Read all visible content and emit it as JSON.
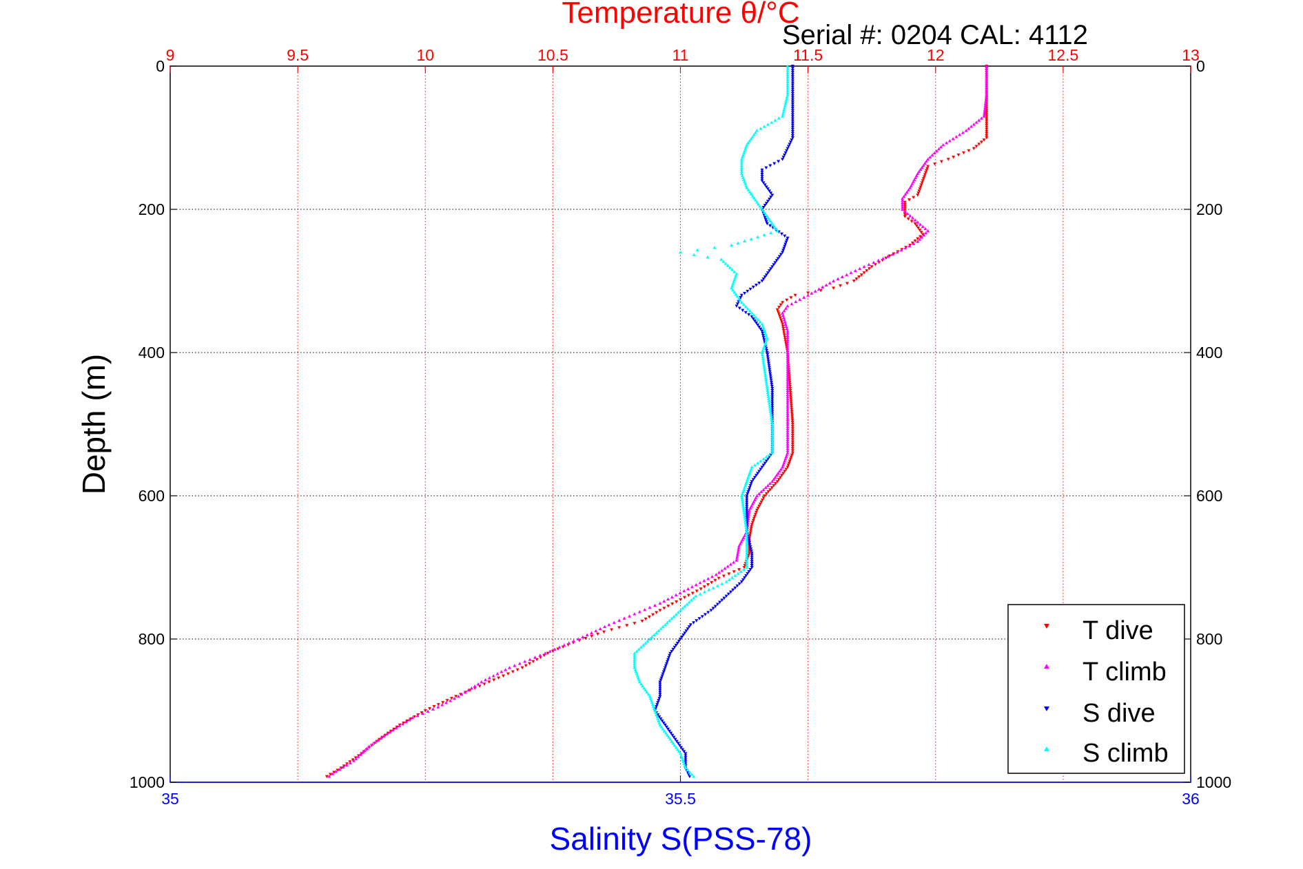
{
  "chart_data": {
    "type": "scatter",
    "title": "Temperature θ/°C",
    "annotation": "Serial #: 0204  CAL: 4112",
    "ylabel": "Depth (m)",
    "xlabel": "Salinity S(PSS-78)",
    "y_axis": {
      "min": 0,
      "max": 1000,
      "reversed": true,
      "ticks": [
        "0",
        "200",
        "400",
        "600",
        "800",
        "1000"
      ],
      "tick_values": [
        0,
        200,
        400,
        600,
        800,
        1000
      ]
    },
    "x_axis_top": {
      "label": "Temperature θ/°C",
      "min": 9,
      "max": 13,
      "color": "#ff0000",
      "ticks": [
        "9",
        "9.5",
        "10",
        "10.5",
        "11",
        "11.5",
        "12",
        "12.5",
        "13"
      ],
      "tick_values": [
        9,
        9.5,
        10,
        10.5,
        11,
        11.5,
        12,
        12.5,
        13
      ]
    },
    "x_axis_bottom": {
      "label": "Salinity S(PSS-78)",
      "min": 35,
      "max": 36,
      "color": "#0000ff",
      "ticks": [
        "35",
        "35.5",
        "36"
      ],
      "tick_values": [
        35,
        35.5,
        36
      ]
    },
    "grid": true,
    "legend_position": "bottom-right",
    "series": [
      {
        "name": "T dive",
        "axis": "temperature",
        "color": "#ff0000",
        "marker": "down-triangle",
        "points": [
          [
            0,
            12.2
          ],
          [
            50,
            12.2
          ],
          [
            100,
            12.2
          ],
          [
            115,
            12.15
          ],
          [
            130,
            12.05
          ],
          [
            140,
            11.97
          ],
          [
            160,
            11.95
          ],
          [
            180,
            11.93
          ],
          [
            190,
            11.88
          ],
          [
            210,
            11.88
          ],
          [
            220,
            11.92
          ],
          [
            235,
            11.95
          ],
          [
            250,
            11.9
          ],
          [
            265,
            11.82
          ],
          [
            280,
            11.75
          ],
          [
            300,
            11.68
          ],
          [
            310,
            11.6
          ],
          [
            320,
            11.45
          ],
          [
            330,
            11.4
          ],
          [
            340,
            11.38
          ],
          [
            360,
            11.4
          ],
          [
            400,
            11.42
          ],
          [
            450,
            11.43
          ],
          [
            500,
            11.44
          ],
          [
            540,
            11.44
          ],
          [
            560,
            11.42
          ],
          [
            580,
            11.38
          ],
          [
            600,
            11.33
          ],
          [
            620,
            11.3
          ],
          [
            640,
            11.28
          ],
          [
            660,
            11.27
          ],
          [
            680,
            11.27
          ],
          [
            700,
            11.25
          ],
          [
            715,
            11.15
          ],
          [
            730,
            11.08
          ],
          [
            745,
            11.0
          ],
          [
            760,
            10.92
          ],
          [
            775,
            10.85
          ],
          [
            790,
            10.7
          ],
          [
            805,
            10.58
          ],
          [
            820,
            10.48
          ],
          [
            840,
            10.38
          ],
          [
            860,
            10.25
          ],
          [
            880,
            10.12
          ],
          [
            900,
            10.0
          ],
          [
            920,
            9.9
          ],
          [
            940,
            9.82
          ],
          [
            960,
            9.75
          ],
          [
            980,
            9.67
          ],
          [
            995,
            9.6
          ]
        ]
      },
      {
        "name": "T climb",
        "axis": "temperature",
        "color": "#ff00ff",
        "marker": "up-triangle",
        "points": [
          [
            0,
            12.2
          ],
          [
            40,
            12.2
          ],
          [
            70,
            12.19
          ],
          [
            90,
            12.12
          ],
          [
            110,
            12.03
          ],
          [
            130,
            11.97
          ],
          [
            150,
            11.93
          ],
          [
            170,
            11.9
          ],
          [
            185,
            11.87
          ],
          [
            200,
            11.87
          ],
          [
            215,
            11.92
          ],
          [
            230,
            11.97
          ],
          [
            245,
            11.93
          ],
          [
            260,
            11.85
          ],
          [
            280,
            11.72
          ],
          [
            300,
            11.6
          ],
          [
            320,
            11.5
          ],
          [
            335,
            11.42
          ],
          [
            345,
            11.4
          ],
          [
            370,
            11.42
          ],
          [
            400,
            11.42
          ],
          [
            450,
            11.42
          ],
          [
            500,
            11.42
          ],
          [
            540,
            11.42
          ],
          [
            560,
            11.4
          ],
          [
            580,
            11.36
          ],
          [
            600,
            11.3
          ],
          [
            620,
            11.27
          ],
          [
            650,
            11.26
          ],
          [
            670,
            11.23
          ],
          [
            690,
            11.22
          ],
          [
            710,
            11.14
          ],
          [
            730,
            11.03
          ],
          [
            750,
            10.92
          ],
          [
            765,
            10.82
          ],
          [
            780,
            10.72
          ],
          [
            800,
            10.6
          ],
          [
            820,
            10.47
          ],
          [
            840,
            10.33
          ],
          [
            860,
            10.22
          ],
          [
            880,
            10.13
          ],
          [
            895,
            10.05
          ],
          [
            910,
            9.95
          ],
          [
            930,
            9.86
          ],
          [
            950,
            9.78
          ],
          [
            970,
            9.72
          ],
          [
            985,
            9.65
          ],
          [
            995,
            9.61
          ]
        ]
      },
      {
        "name": "S dive",
        "axis": "salinity",
        "color": "#0000ff",
        "marker": "down-triangle",
        "points": [
          [
            0,
            35.61
          ],
          [
            50,
            35.61
          ],
          [
            100,
            35.61
          ],
          [
            130,
            35.6
          ],
          [
            145,
            35.58
          ],
          [
            160,
            35.58
          ],
          [
            180,
            35.59
          ],
          [
            200,
            35.58
          ],
          [
            220,
            35.585
          ],
          [
            240,
            35.605
          ],
          [
            260,
            35.6
          ],
          [
            280,
            35.59
          ],
          [
            300,
            35.58
          ],
          [
            320,
            35.56
          ],
          [
            335,
            35.555
          ],
          [
            350,
            35.57
          ],
          [
            370,
            35.58
          ],
          [
            400,
            35.585
          ],
          [
            450,
            35.59
          ],
          [
            500,
            35.59
          ],
          [
            540,
            35.59
          ],
          [
            560,
            35.58
          ],
          [
            580,
            35.57
          ],
          [
            600,
            35.565
          ],
          [
            650,
            35.565
          ],
          [
            680,
            35.57
          ],
          [
            700,
            35.57
          ],
          [
            720,
            35.56
          ],
          [
            740,
            35.545
          ],
          [
            760,
            35.53
          ],
          [
            780,
            35.51
          ],
          [
            800,
            35.5
          ],
          [
            820,
            35.49
          ],
          [
            840,
            35.485
          ],
          [
            860,
            35.48
          ],
          [
            880,
            35.48
          ],
          [
            900,
            35.475
          ],
          [
            920,
            35.485
          ],
          [
            940,
            35.495
          ],
          [
            960,
            35.505
          ],
          [
            980,
            35.505
          ],
          [
            995,
            35.51
          ]
        ]
      },
      {
        "name": "S climb",
        "axis": "salinity",
        "color": "#00ffff",
        "marker": "up-triangle",
        "points": [
          [
            0,
            35.605
          ],
          [
            40,
            35.605
          ],
          [
            70,
            35.6
          ],
          [
            90,
            35.575
          ],
          [
            110,
            35.565
          ],
          [
            130,
            35.56
          ],
          [
            150,
            35.56
          ],
          [
            170,
            35.565
          ],
          [
            190,
            35.575
          ],
          [
            210,
            35.585
          ],
          [
            230,
            35.595
          ],
          [
            250,
            35.55
          ],
          [
            260,
            35.5
          ],
          [
            270,
            35.54
          ],
          [
            290,
            35.555
          ],
          [
            310,
            35.55
          ],
          [
            330,
            35.56
          ],
          [
            345,
            35.57
          ],
          [
            360,
            35.58
          ],
          [
            380,
            35.585
          ],
          [
            400,
            35.58
          ],
          [
            450,
            35.585
          ],
          [
            500,
            35.59
          ],
          [
            540,
            35.59
          ],
          [
            560,
            35.57
          ],
          [
            580,
            35.565
          ],
          [
            600,
            35.56
          ],
          [
            650,
            35.565
          ],
          [
            700,
            35.565
          ],
          [
            720,
            35.545
          ],
          [
            740,
            35.515
          ],
          [
            760,
            35.5
          ],
          [
            780,
            35.485
          ],
          [
            800,
            35.47
          ],
          [
            820,
            35.455
          ],
          [
            840,
            35.455
          ],
          [
            860,
            35.46
          ],
          [
            880,
            35.47
          ],
          [
            900,
            35.475
          ],
          [
            920,
            35.48
          ],
          [
            940,
            35.49
          ],
          [
            960,
            35.5
          ],
          [
            980,
            35.505
          ],
          [
            995,
            35.515
          ]
        ]
      }
    ]
  }
}
